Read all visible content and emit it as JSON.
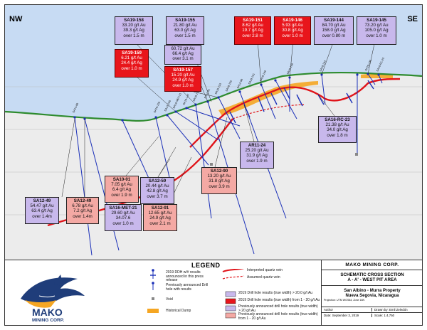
{
  "orientation": {
    "left": "NW",
    "right": "SE"
  },
  "drill_labels": [
    "SA13-60",
    "SA19-159",
    "SA13-156",
    "SA16-MET-21",
    "SA19-147",
    "SA19-157",
    "SA12-91",
    "SA19-153",
    "SA19-155",
    "SA12-98",
    "SA19-151",
    "SA19-146",
    "AR11-24",
    "SA19-148",
    "SA19-144",
    "SA16-RC-23",
    "SA19-145",
    "SA16-RC-25"
  ],
  "result_boxes": {
    "sa19_158": {
      "title": "SA19-158",
      "l1": "33.20 g/t Au",
      "l2": "39.3 g/t Ag",
      "l3": "over 1.5 m"
    },
    "sa19_155": {
      "title": "SA19-155",
      "l1": "21.80 g/t Au",
      "l2": "63.0 g/t Ag",
      "l3": "over 1.5 m"
    },
    "sa19_151": {
      "title": "SA19-151",
      "l1": "8.62 g/t Au",
      "l2": "19.7 g/t Ag",
      "l3": "over 2.8 m"
    },
    "sa19_146": {
      "title": "SA19-146",
      "l1": "5.93 g/t Au",
      "l2": "30.8 g/t Ag",
      "l3": "over 1.0 m"
    },
    "sa19_144": {
      "title": "SA19-144",
      "l1": "84.70 g/t Au",
      "l2": "158.0 g/t Ag",
      "l3": "over 0.80 m"
    },
    "sa19_145": {
      "title": "SA19-145",
      "l1": "73.20 g/t Au",
      "l2": "105.0 g/t Ag",
      "l3": "over 1.0 m"
    },
    "sa19_159": {
      "title": "SA19-159",
      "l1": "6.21 g/t Au",
      "l2": "24.4 g/t Ag",
      "l3": "over 1.0 m"
    },
    "sa19_147": {
      "title": "",
      "l1": "60.72 g/t Au",
      "l2": "66.4 g/t Ag",
      "l3": "over 3.1 m"
    },
    "sa19_157": {
      "title": "SA19-157",
      "l1": "15.20 g/t Au",
      "l2": "24.9 g/t Ag",
      "l3": "over 1.0 m"
    },
    "sa16_rc_23": {
      "title": "SA16-RC-23",
      "l1": "21.38 g/t Au",
      "l2": "34.0 g/t Ag",
      "l3": "over 1.8 m"
    },
    "ar11_24": {
      "title": "AR11-24",
      "l1": "25.20 g/t Au",
      "l2": "31.9 g/t Ag",
      "l3": "over 1.9 m"
    },
    "sa12_90": {
      "title": "SA12-90",
      "l1": "13.20 g/t Au",
      "l2": "31.8 g/t Ag",
      "l3": "over 3.9 m"
    },
    "sa10_01": {
      "title": "SA10-01",
      "l1": "7.05 g/t Au",
      "l2": "6.4 g/t Ag",
      "l3": "over 1.9 m"
    },
    "sa12_59": {
      "title": "SA12-59",
      "l1": "20.44 g/t Au",
      "l2": "42.8 g/t Ag",
      "l3": "over 3.7 m"
    },
    "sa16_met_21": {
      "title": "SA16-MET-21",
      "l1": "29.60 g/t Au",
      "l2": "34.07.6",
      "l3": "over 1.0 m"
    },
    "sa12_91": {
      "title": "SA12-91",
      "l1": "12.65 g/t Au",
      "l2": "24.9 g/t Ag",
      "l3": "over 2.1 m"
    },
    "sa12_49": {
      "title": "SA12-49",
      "l1": "54.47 g/t Au",
      "l2": "63.4 g/t Ag",
      "l3": "over 1.4m"
    },
    "sa12_49b": {
      "title": "SA12-49",
      "l1": "6.78 g/t Au",
      "l2": "7.2 g/t Ag",
      "l3": "over 1.4m"
    }
  },
  "legend": {
    "title": "LEGEND",
    "item1": "2019 DDH w/# results announced in this press release",
    "item2": "Previously announced Drill hole with results",
    "item3": "Void",
    "item4": "Historical Dump",
    "item5": "Interpreted quartz vein",
    "item6": "Assumed quartz vein",
    "item7": "2019 Drill hole results (true width) > 20.0 g/t Au",
    "item8": "2019 Drill hole results (true width) from 1 - 20 g/t Au",
    "item9": "Previously announced drill hole results (true width) > 20 g/t Au",
    "item10": "Previously announced drill hole results (true width) from 1 - 20 g/t Au"
  },
  "logo": {
    "name": "MAKO",
    "sub": "MINING CORP."
  },
  "info": {
    "company": "MAKO MINING CORP.",
    "title1": "SCHEMATIC CROSS SECTION",
    "title2": "A - A'  -  WEST PIT AREA",
    "property1": "San Albino - Murra Property",
    "property2": "Nueva Segovia, Nicaragua",
    "projection": "Projection: UTM WGS84, Zone 16N",
    "author_label": "Author",
    "drawn_label": "Drawn by: Emil Zeledón",
    "date_label": "Date: September 3, 2019",
    "scale_label": "Scale: 1:4,750"
  },
  "colors": {
    "sky": "#c7dbf3",
    "ground": "#ececec",
    "topo": "#2e8b2e",
    "vein": "#e0141a",
    "dump": "#f5a623",
    "hole": "#1a2fb8",
    "red_box": "#e8151b",
    "lilac_box": "#c8b8ec",
    "pink_box": "#f4a9a4"
  }
}
